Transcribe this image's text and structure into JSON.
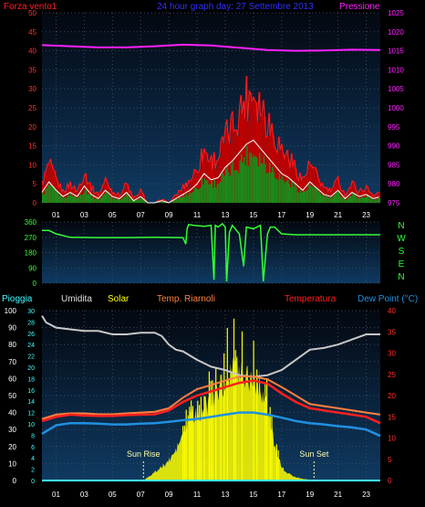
{
  "header": {
    "title": "24 hour graph day: 27 Settembre 2013",
    "left_label": "Forza vento1",
    "right_label": "Pressione"
  },
  "colors": {
    "title": "#3030ff",
    "wind_label": "#ff2020",
    "pressure": "#ff20ff",
    "wind_axis": "#ff3030",
    "direction": "#33ff33",
    "rain": "#40ffff",
    "humidity": "#c8c8c8",
    "solar": "#ffff00",
    "riarnoli": "#ff8040",
    "temperature": "#ff2020",
    "dewpoint": "#2090e0",
    "hum_axis": "#ffffff",
    "temp_axis": "#ff3030",
    "sun_marker": "#ffffaa"
  },
  "chart_data": [
    {
      "type": "line",
      "title": "24 hour graph day: 27 Settembre 2013",
      "xlabel": "",
      "x_ticks": [
        "01",
        "03",
        "05",
        "07",
        "09",
        "11",
        "13",
        "15",
        "17",
        "19",
        "21",
        "23"
      ],
      "xlim": [
        0,
        24
      ],
      "ylim_left": [
        0,
        50
      ],
      "y_ticks_left": [
        "0",
        "5",
        "10",
        "15",
        "20",
        "25",
        "30",
        "35",
        "40",
        "45",
        "50"
      ],
      "ylim_right": [
        975,
        1025
      ],
      "y_ticks_right": [
        "975",
        "980",
        "985",
        "990",
        "995",
        "1000",
        "1005",
        "1010",
        "1015",
        "1020",
        "1025"
      ],
      "series": [
        {
          "name": "Forza vento1",
          "axis": "left",
          "x": [
            0,
            0.5,
            1,
            1.5,
            2,
            2.5,
            3,
            3.5,
            4,
            4.5,
            5,
            5.5,
            6,
            6.5,
            7,
            7.5,
            8,
            8.5,
            9,
            9.5,
            10,
            10.5,
            11,
            11.5,
            12,
            12.5,
            13,
            13.5,
            14,
            14.5,
            15,
            15.5,
            16,
            16.5,
            17,
            17.5,
            18,
            18.5,
            19,
            19.5,
            20,
            20.5,
            21,
            21.5,
            22,
            22.5,
            23,
            23.5,
            24
          ],
          "values": [
            5,
            10,
            6,
            3,
            5,
            3,
            8,
            4,
            2,
            6,
            3,
            2,
            5,
            1,
            3,
            0,
            0,
            1,
            0,
            2,
            4,
            6,
            9,
            14,
            11,
            12,
            17,
            20,
            24,
            28,
            30,
            26,
            22,
            18,
            14,
            12,
            9,
            6,
            10,
            7,
            4,
            3,
            6,
            2,
            5,
            3,
            4,
            2,
            3
          ]
        },
        {
          "name": "Pressione",
          "axis": "right",
          "x": [
            0,
            2,
            4,
            6,
            8,
            10,
            12,
            14,
            16,
            18,
            20,
            22,
            24
          ],
          "values": [
            1016.5,
            1016.2,
            1015.9,
            1015.9,
            1016.2,
            1016.6,
            1016.4,
            1015.8,
            1015.2,
            1015.0,
            1015.1,
            1015.3,
            1015.2
          ]
        }
      ]
    },
    {
      "type": "line",
      "right_labels": [
        "N",
        "W",
        "S",
        "E",
        "N"
      ],
      "ylim": [
        0,
        360
      ],
      "y_ticks": [
        "0",
        "90",
        "180",
        "270",
        "360"
      ],
      "xlim": [
        0,
        24
      ],
      "series": [
        {
          "name": "wind direction",
          "x": [
            0,
            0.5,
            1,
            2,
            4,
            6,
            8,
            10,
            10.2,
            10.3,
            10.4,
            10.8,
            11.5,
            12,
            12.2,
            12.3,
            12.5,
            12.8,
            13,
            13.1,
            13.3,
            13.5,
            14,
            14.3,
            14.5,
            15,
            15.5,
            15.7,
            16,
            16.2,
            16.5,
            17,
            18,
            20,
            22,
            24
          ],
          "values": [
            310,
            310,
            290,
            270,
            268,
            268,
            270,
            268,
            230,
            320,
            345,
            340,
            335,
            340,
            20,
            340,
            330,
            350,
            330,
            10,
            300,
            340,
            290,
            100,
            330,
            320,
            340,
            10,
            290,
            330,
            330,
            290,
            285,
            285,
            285,
            285
          ]
        }
      ]
    },
    {
      "type": "line",
      "header_labels": [
        "Pioggia",
        "Umidita",
        "Solar",
        "Temp. Riarnoli",
        "Temperatura",
        "Dew Point (°C)"
      ],
      "x_ticks": [
        "01",
        "03",
        "05",
        "07",
        "09",
        "11",
        "13",
        "15",
        "17",
        "19",
        "21",
        "23"
      ],
      "xlim": [
        0,
        24
      ],
      "ylim_humidity": [
        0,
        100
      ],
      "y_ticks_humidity": [
        "0",
        "10",
        "20",
        "30",
        "40",
        "50",
        "60",
        "70",
        "80",
        "90",
        "100"
      ],
      "ylim_rain": [
        0,
        30
      ],
      "y_ticks_rain": [
        "0",
        "2",
        "4",
        "6",
        "8",
        "10",
        "12",
        "14",
        "16",
        "18",
        "20",
        "22",
        "24",
        "26",
        "28",
        "30"
      ],
      "ylim_temp": [
        0,
        40
      ],
      "y_ticks_temp": [
        "0",
        "5",
        "10",
        "15",
        "20",
        "25",
        "30",
        "35",
        "40"
      ],
      "annotations": [
        "Sun Rise",
        "Sun Set"
      ],
      "sunrise_hour": 7.2,
      "sunset_hour": 19.3,
      "series": [
        {
          "name": "Umidita",
          "axis": "humidity",
          "x": [
            0,
            0.3,
            1,
            2,
            3,
            4,
            5,
            6,
            7,
            8,
            8.5,
            9,
            9.5,
            10,
            11,
            12,
            13,
            14,
            15,
            16,
            17,
            18,
            19,
            20,
            21,
            22,
            23,
            24
          ],
          "values": [
            97,
            93,
            90,
            89,
            88,
            88,
            86,
            86,
            87,
            87,
            85,
            80,
            77,
            76,
            71,
            67,
            65,
            62,
            61,
            62,
            65,
            71,
            77,
            78,
            80,
            83,
            86,
            86
          ]
        },
        {
          "name": "Temp. Riarnoli",
          "axis": "temp",
          "x": [
            0,
            1,
            2,
            3,
            4,
            5,
            6,
            7,
            8,
            9,
            10,
            11,
            12,
            13,
            14,
            15,
            16,
            17,
            18,
            19,
            20,
            21,
            22,
            23,
            24
          ],
          "values": [
            14.5,
            15.5,
            15.8,
            15.8,
            15.6,
            15.6,
            15.8,
            16.0,
            16.2,
            17.0,
            19.5,
            21.5,
            22.5,
            23.5,
            24.5,
            24.5,
            23.8,
            22.0,
            20.0,
            18.0,
            17.5,
            17.0,
            16.5,
            16.0,
            15.5
          ]
        },
        {
          "name": "Temperatura",
          "axis": "temp",
          "x": [
            0,
            1,
            2,
            3,
            4,
            5,
            6,
            7,
            8,
            9,
            10,
            11,
            12,
            13,
            14,
            15,
            16,
            17,
            18,
            19,
            20,
            21,
            22,
            23,
            24
          ],
          "values": [
            14.0,
            15.0,
            15.5,
            15.3,
            15.2,
            15.2,
            15.4,
            15.5,
            15.6,
            16.5,
            18.5,
            20.0,
            21.0,
            22.0,
            23.0,
            23.5,
            22.8,
            20.5,
            18.5,
            17.0,
            16.5,
            16.0,
            15.5,
            15.0,
            13.5
          ]
        },
        {
          "name": "Dew Point",
          "axis": "temp",
          "x": [
            0,
            1,
            2,
            3,
            4,
            5,
            6,
            7,
            8,
            9,
            10,
            11,
            12,
            13,
            14,
            15,
            16,
            17,
            18,
            19,
            20,
            21,
            22,
            23,
            24
          ],
          "values": [
            11.0,
            13.0,
            13.5,
            13.5,
            13.4,
            13.2,
            13.2,
            13.4,
            13.5,
            13.8,
            14.2,
            14.5,
            15.0,
            15.5,
            16.0,
            16.0,
            15.5,
            14.8,
            14.0,
            13.5,
            13.2,
            12.8,
            12.5,
            12.0,
            10.5
          ]
        },
        {
          "name": "Solar",
          "axis": "humidity",
          "x": [
            7.2,
            7.5,
            8,
            8.5,
            9,
            9.5,
            10,
            10.5,
            11,
            11.5,
            12,
            12.5,
            13,
            13.5,
            14,
            14.5,
            15,
            15.5,
            16,
            16.5,
            17,
            17.5,
            18,
            18.5,
            19,
            19.3
          ],
          "values": [
            0,
            2,
            5,
            8,
            12,
            18,
            28,
            38,
            40,
            44,
            50,
            55,
            62,
            70,
            68,
            65,
            62,
            58,
            42,
            22,
            8,
            4,
            2,
            1,
            0.5,
            0
          ]
        },
        {
          "name": "Pioggia",
          "axis": "rain",
          "x": [
            0,
            24
          ],
          "values": [
            0,
            0
          ]
        }
      ]
    }
  ]
}
